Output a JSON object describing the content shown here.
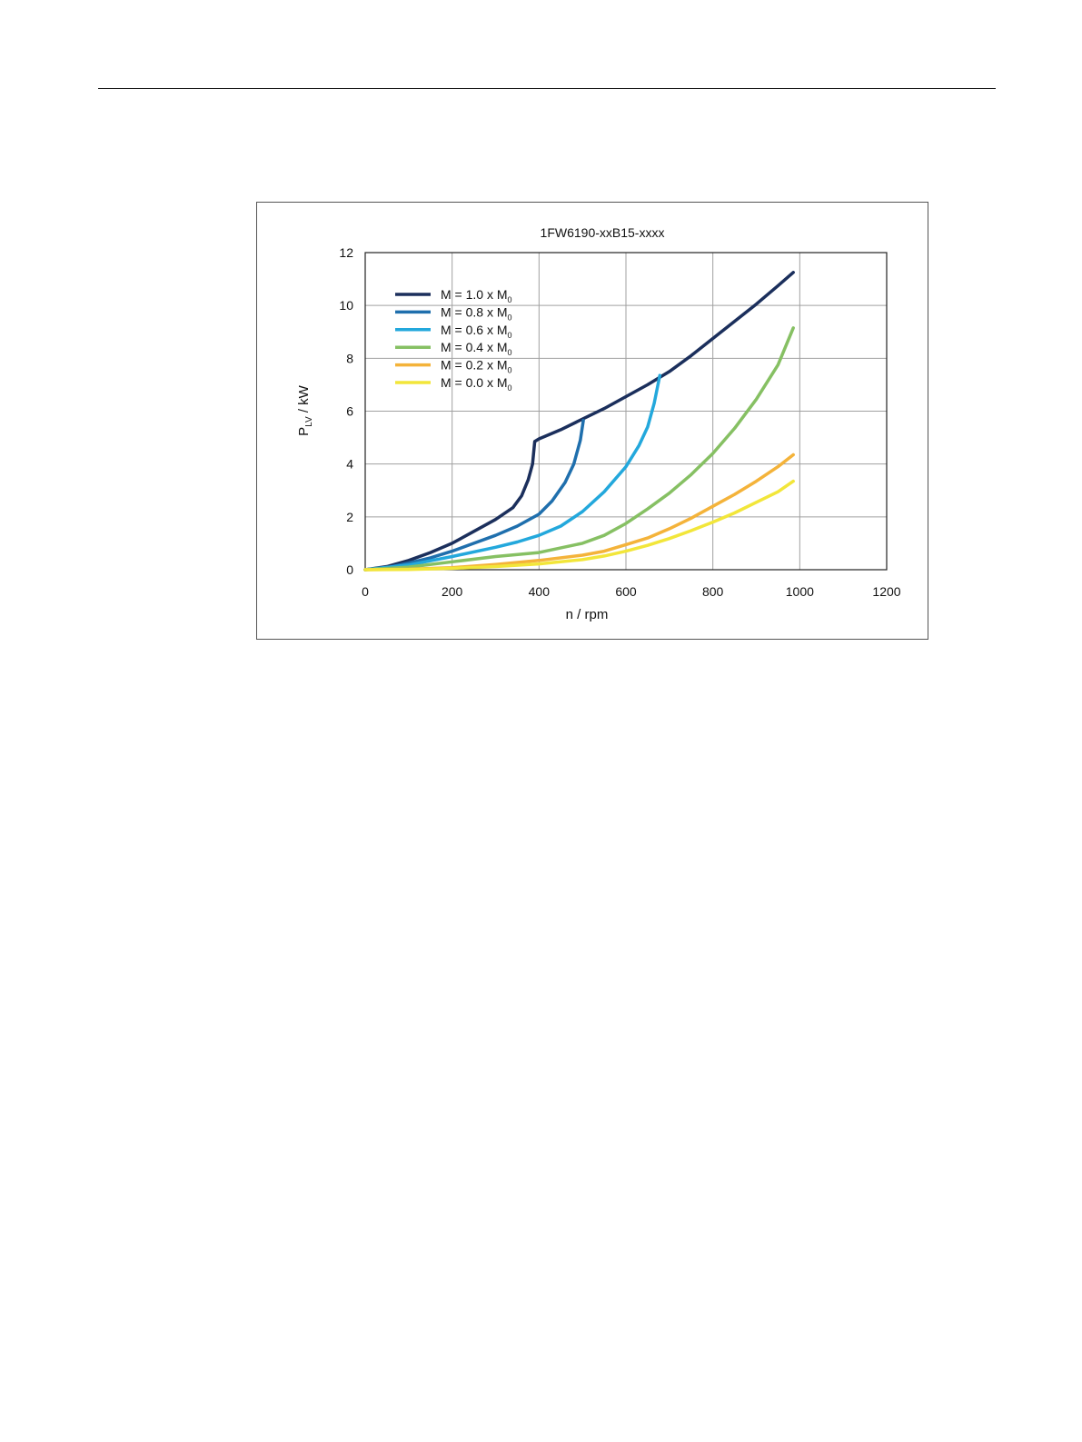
{
  "chart_data": {
    "type": "line",
    "title": "1FW6190-xxB15-xxxx",
    "xlabel": "n / rpm",
    "ylabel": {
      "main": "P",
      "sub": "LV",
      "unit": " / kW"
    },
    "xlim": [
      0,
      1200
    ],
    "ylim": [
      0,
      12
    ],
    "xticks": [
      0,
      200,
      400,
      600,
      800,
      1000,
      1200
    ],
    "yticks": [
      0,
      2,
      4,
      6,
      8,
      10,
      12
    ],
    "grid": true,
    "legend": "top-left",
    "series": [
      {
        "name": "M = 1.0 x M0",
        "label_main": "M = 1.0 x M",
        "label_sub": "0",
        "color": "#1b2f5c",
        "x": [
          0,
          50,
          100,
          150,
          200,
          250,
          300,
          340,
          360,
          375,
          385,
          390,
          400,
          450,
          500,
          550,
          600,
          650,
          700,
          750,
          800,
          850,
          900,
          950,
          985
        ],
        "y": [
          0,
          0.12,
          0.35,
          0.65,
          1.0,
          1.45,
          1.9,
          2.35,
          2.8,
          3.4,
          4.0,
          4.85,
          4.95,
          5.3,
          5.7,
          6.1,
          6.55,
          7.0,
          7.5,
          8.1,
          8.75,
          9.4,
          10.05,
          10.75,
          11.25
        ]
      },
      {
        "name": "M = 0.8 x M0",
        "label_main": "M = 0.8 x M",
        "label_sub": "0",
        "color": "#1f6fad",
        "x": [
          0,
          50,
          100,
          150,
          200,
          250,
          300,
          350,
          400,
          430,
          460,
          480,
          495,
          502
        ],
        "y": [
          0,
          0.08,
          0.25,
          0.45,
          0.7,
          1.0,
          1.3,
          1.65,
          2.1,
          2.6,
          3.3,
          4.0,
          4.9,
          5.65
        ]
      },
      {
        "name": "M = 0.6 x M0",
        "label_main": "M = 0.6 x M",
        "label_sub": "0",
        "color": "#23a8dc",
        "x": [
          0,
          100,
          200,
          300,
          350,
          400,
          450,
          500,
          550,
          600,
          630,
          650,
          665,
          678
        ],
        "y": [
          0,
          0.18,
          0.5,
          0.85,
          1.05,
          1.3,
          1.65,
          2.2,
          2.95,
          3.9,
          4.7,
          5.4,
          6.3,
          7.35
        ]
      },
      {
        "name": "M = 0.4 x M0",
        "label_main": "M = 0.4 x M",
        "label_sub": "0",
        "color": "#86c063",
        "x": [
          0,
          100,
          200,
          300,
          400,
          500,
          550,
          600,
          650,
          700,
          750,
          800,
          850,
          900,
          950,
          985
        ],
        "y": [
          0,
          0.1,
          0.3,
          0.5,
          0.65,
          1.0,
          1.3,
          1.75,
          2.3,
          2.9,
          3.6,
          4.4,
          5.35,
          6.45,
          7.75,
          9.15
        ]
      },
      {
        "name": "M = 0.2 x M0",
        "label_main": "M = 0.2 x M",
        "label_sub": "0",
        "color": "#f4b33a",
        "x": [
          0,
          100,
          200,
          300,
          400,
          500,
          550,
          600,
          650,
          700,
          750,
          800,
          850,
          900,
          950,
          985
        ],
        "y": [
          0,
          0.02,
          0.08,
          0.2,
          0.35,
          0.55,
          0.7,
          0.95,
          1.2,
          1.55,
          1.95,
          2.4,
          2.85,
          3.35,
          3.9,
          4.35
        ]
      },
      {
        "name": "M = 0.0 x M0",
        "label_main": "M = 0.0 x M",
        "label_sub": "0",
        "color": "#f2e63a",
        "x": [
          0,
          100,
          200,
          300,
          400,
          500,
          550,
          600,
          650,
          700,
          750,
          800,
          850,
          900,
          950,
          985
        ],
        "y": [
          0,
          0.01,
          0.05,
          0.12,
          0.22,
          0.38,
          0.52,
          0.7,
          0.92,
          1.18,
          1.48,
          1.8,
          2.15,
          2.55,
          2.95,
          3.35
        ]
      }
    ]
  }
}
